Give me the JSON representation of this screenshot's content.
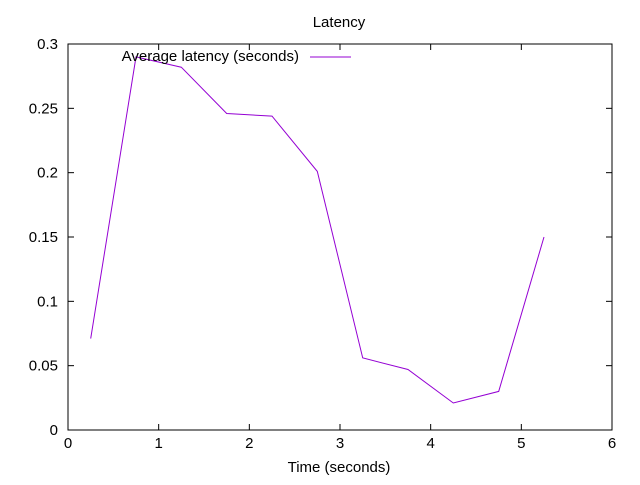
{
  "chart_data": {
    "type": "line",
    "title": "Latency",
    "xlabel": "Time (seconds)",
    "ylabel": "",
    "xlim": [
      0,
      6
    ],
    "ylim": [
      0,
      0.3
    ],
    "x_ticks": [
      0,
      1,
      2,
      3,
      4,
      5,
      6
    ],
    "x_tick_labels": [
      "0",
      "1",
      "2",
      "3",
      "4",
      "5",
      "6"
    ],
    "y_ticks": [
      0,
      0.05,
      0.1,
      0.15,
      0.2,
      0.25,
      0.3
    ],
    "y_tick_labels": [
      "0",
      "0.05",
      "0.1",
      "0.15",
      "0.2",
      "0.25",
      "0.3"
    ],
    "grid": false,
    "legend_position": "top",
    "series": [
      {
        "name": "Average latency (seconds)",
        "color": "#9400d3",
        "x": [
          0.25,
          0.75,
          1.25,
          1.75,
          2.25,
          2.75,
          3.25,
          3.75,
          4.25,
          4.75,
          5.25
        ],
        "y": [
          0.071,
          0.29,
          0.282,
          0.246,
          0.244,
          0.201,
          0.056,
          0.047,
          0.021,
          0.03,
          0.15
        ]
      }
    ]
  }
}
